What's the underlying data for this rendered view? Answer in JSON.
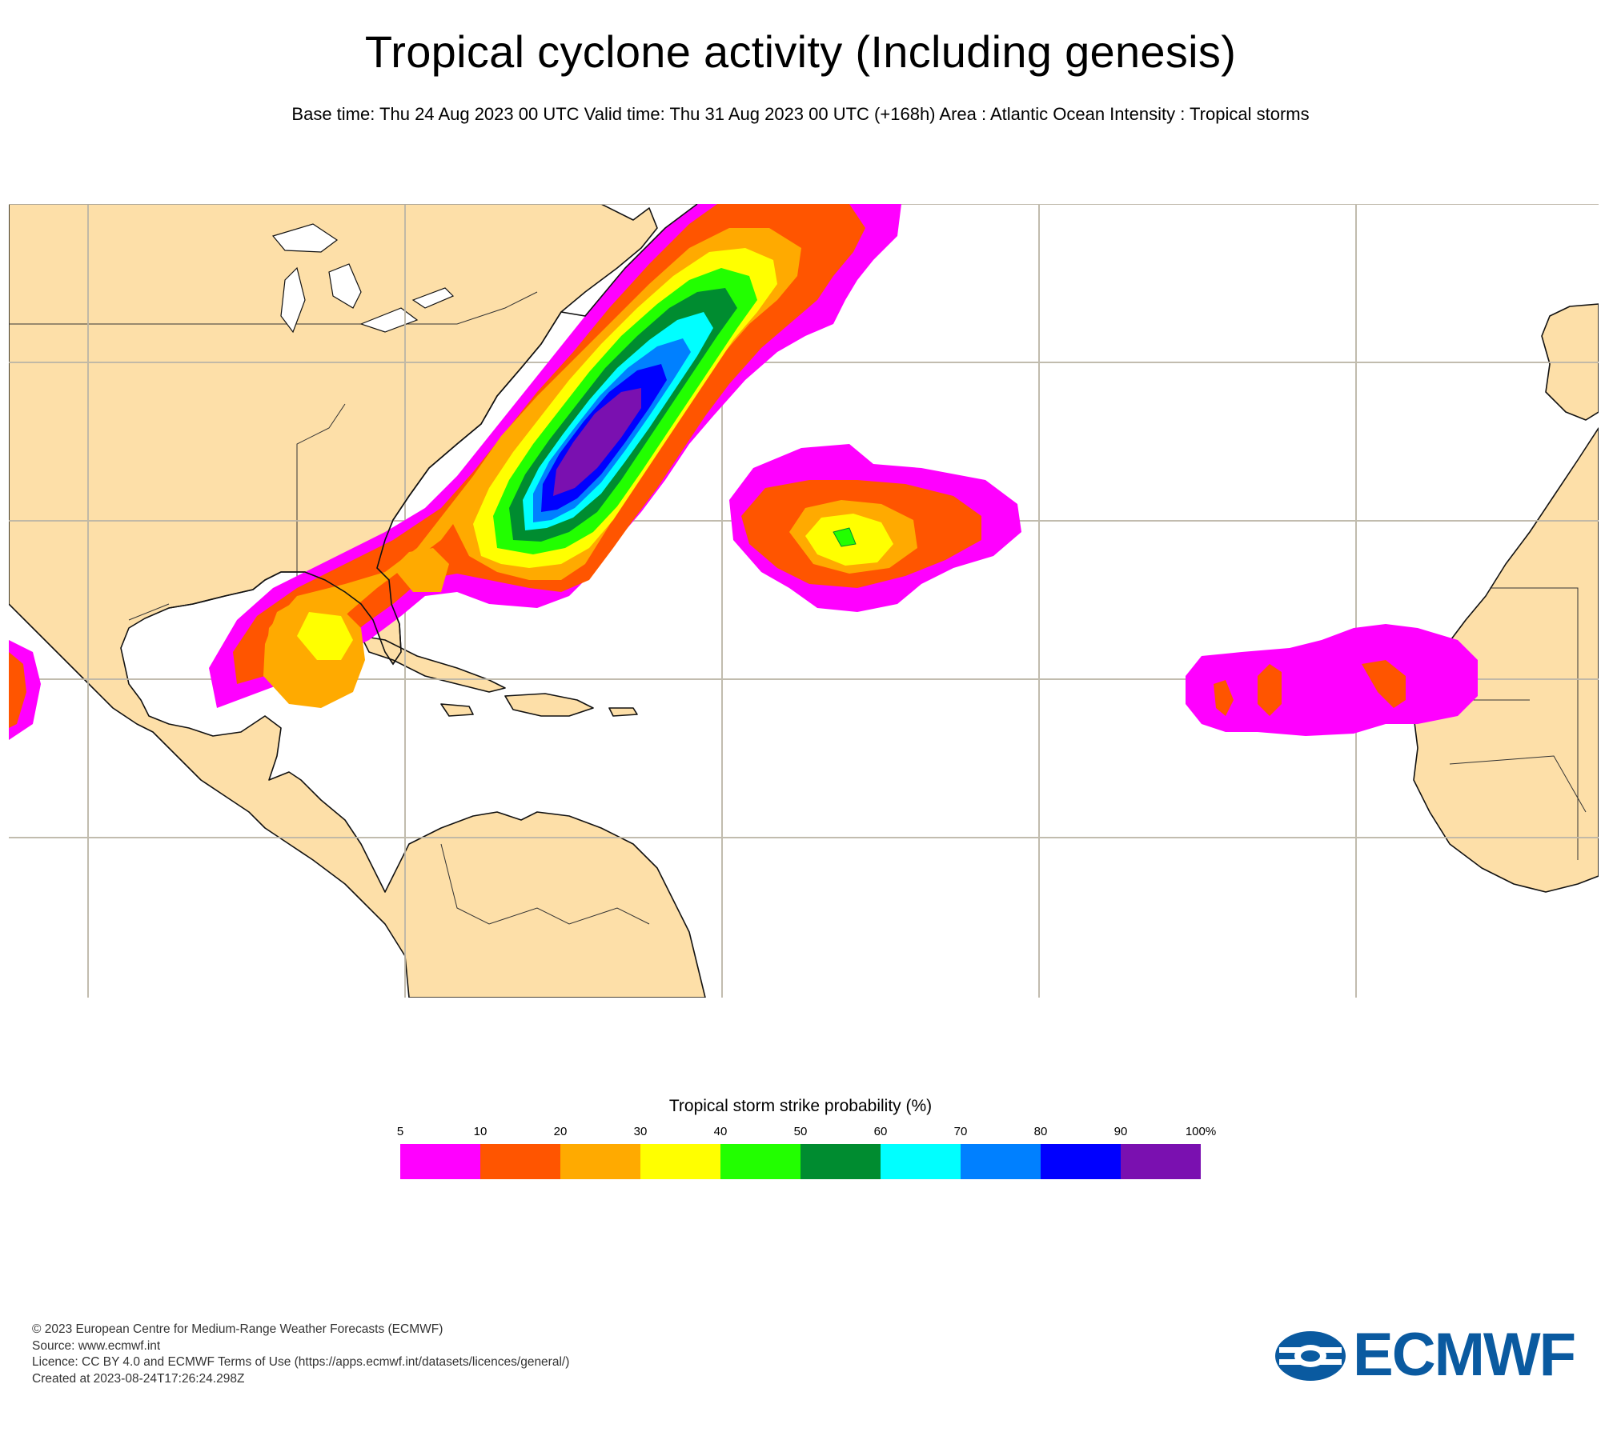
{
  "header": {
    "title": "Tropical cyclone activity (Including genesis)",
    "subtitle": "Base time: Thu 24 Aug 2023 00 UTC Valid time: Thu 31 Aug 2023 00 UTC (+168h) Area : Atlantic Ocean Intensity : Tropical storms"
  },
  "map": {
    "land_color": "#FDDFA8",
    "ocean_color": "#FFFFFF",
    "grid_color": "#BBB5A6"
  },
  "legend": {
    "title": "Tropical storm strike probability (%)",
    "ticks": [
      "5",
      "10",
      "20",
      "30",
      "40",
      "50",
      "60",
      "70",
      "80",
      "90",
      "100%"
    ],
    "colors": [
      "#FF00FF",
      "#FF5500",
      "#FFAA00",
      "#FFFF00",
      "#22FF00",
      "#008C30",
      "#00FFFF",
      "#0080FF",
      "#0000FF",
      "#7A10B0"
    ]
  },
  "footer": {
    "lines": [
      "© 2023 European Centre for Medium-Range Weather Forecasts (ECMWF)",
      "Source: www.ecmwf.int",
      "Licence: CC BY 4.0 and ECMWF Terms of Use (https://apps.ecmwf.int/datasets/licences/general/)",
      "Created at 2023-08-24T17:26:24.298Z"
    ]
  },
  "logo": {
    "text": "ECMWF",
    "color": "#0A5AA0"
  }
}
